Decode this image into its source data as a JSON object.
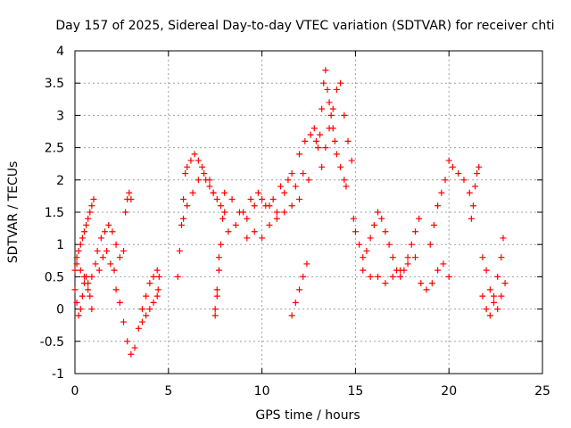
{
  "chart_data": {
    "type": "scatter",
    "title": "Day 157 of 2025, Sidereal Day-to-day VTEC variation (SDTVAR) for receiver chti",
    "xlabel": "GPS time / hours",
    "ylabel": "SDTVAR / TECUs",
    "xlim": [
      0,
      25
    ],
    "ylim": [
      -1,
      4
    ],
    "xticks": [
      "0",
      "5",
      "10",
      "15",
      "20",
      "25"
    ],
    "yticks": [
      "-1",
      "-0.5",
      "0",
      "0.5",
      "1",
      "1.5",
      "2",
      "2.5",
      "3",
      "3.5",
      "4"
    ],
    "grid": true,
    "marker": "+",
    "color": "#ff0000",
    "series": [
      {
        "x": [
          0.0,
          0.1,
          0.2,
          0.3,
          0.4,
          0.5,
          0.6,
          0.7,
          0.8,
          0.9,
          1.0,
          0.0,
          0.1,
          0.2,
          0.3,
          0.4,
          0.5,
          0.6,
          0.7,
          0.8,
          0.9,
          0.1,
          0.3,
          0.5,
          0.7,
          0.9,
          1.1,
          1.3,
          1.5,
          1.7,
          1.9,
          2.1,
          1.2,
          1.4,
          1.6,
          1.8,
          2.0,
          2.2,
          2.4,
          2.6,
          2.7,
          2.8,
          2.9,
          3.0,
          2.2,
          2.4,
          2.6,
          2.8,
          3.0,
          3.2,
          3.4,
          3.6,
          3.8,
          4.0,
          4.2,
          4.4,
          3.6,
          3.8,
          4.0,
          4.2,
          4.4,
          4.45,
          4.5,
          5.5,
          5.6,
          5.7,
          5.8,
          5.9,
          6.0,
          6.2,
          6.4,
          6.6,
          6.8,
          7.0,
          7.2,
          7.4,
          7.6,
          7.8,
          8.0,
          5.8,
          6.0,
          6.3,
          6.6,
          6.9,
          7.2,
          7.4,
          7.5,
          7.6,
          7.7,
          7.8,
          7.9,
          7.5,
          7.6,
          7.7,
          8.0,
          8.4,
          8.8,
          9.2,
          9.6,
          10.0,
          10.4,
          10.8,
          11.2,
          11.6,
          12.0,
          12.3,
          8.2,
          8.6,
          9.0,
          9.4,
          9.8,
          10.2,
          10.6,
          11.0,
          11.4,
          11.8,
          12.2,
          12.5,
          9.2,
          9.6,
          10.0,
          10.4,
          10.8,
          11.2,
          11.6,
          12.0,
          11.6,
          11.8,
          12.0,
          12.2,
          12.4,
          12.6,
          12.8,
          12.9,
          13.0,
          13.1,
          13.2,
          13.3,
          13.4,
          13.5,
          13.6,
          13.7,
          13.8,
          13.9,
          14.0,
          14.2,
          14.4,
          14.5,
          13.2,
          13.4,
          13.6,
          13.8,
          14.0,
          14.2,
          14.4,
          14.6,
          14.8,
          14.9,
          15.0,
          15.2,
          15.4,
          15.6,
          15.8,
          16.0,
          16.2,
          16.4,
          16.6,
          16.8,
          17.0,
          17.2,
          17.4,
          17.6,
          17.8,
          18.0,
          18.2,
          18.4,
          15.4,
          15.8,
          16.2,
          16.6,
          17.0,
          17.4,
          17.8,
          18.2,
          18.5,
          18.8,
          19.1,
          19.4,
          19.7,
          20.0,
          19.0,
          19.2,
          19.4,
          19.6,
          19.8,
          20.0,
          20.2,
          20.5,
          20.8,
          21.1,
          21.2,
          21.3,
          21.4,
          21.5,
          21.6,
          21.8,
          22.0,
          22.2,
          22.4,
          22.6,
          22.8,
          23.0,
          21.8,
          22.0,
          22.2,
          22.4,
          22.6,
          22.8,
          22.9
        ],
        "y": [
          0.6,
          0.7,
          0.9,
          1.0,
          1.1,
          1.2,
          1.3,
          1.4,
          1.5,
          1.6,
          1.7,
          0.3,
          0.1,
          -0.1,
          0.0,
          0.2,
          0.4,
          0.5,
          0.3,
          0.2,
          0.0,
          0.8,
          0.6,
          0.5,
          0.4,
          0.5,
          0.7,
          0.6,
          0.8,
          0.9,
          0.7,
          0.6,
          0.9,
          1.1,
          1.2,
          1.3,
          1.2,
          1.0,
          0.8,
          0.9,
          1.5,
          1.7,
          1.8,
          1.7,
          0.3,
          0.1,
          -0.2,
          -0.5,
          -0.7,
          -0.6,
          -0.3,
          0.0,
          0.2,
          0.4,
          0.5,
          0.6,
          -0.2,
          -0.1,
          0.0,
          0.1,
          0.2,
          0.3,
          0.5,
          0.5,
          0.9,
          1.3,
          1.7,
          2.1,
          2.2,
          2.3,
          2.4,
          2.3,
          2.2,
          2.0,
          1.9,
          1.8,
          1.7,
          1.6,
          1.5,
          1.4,
          1.6,
          1.8,
          2.0,
          2.1,
          2.0,
          1.8,
          0.0,
          0.2,
          0.6,
          1.0,
          1.4,
          -0.1,
          0.3,
          0.8,
          1.8,
          1.7,
          1.5,
          1.4,
          1.6,
          1.7,
          1.6,
          1.5,
          1.8,
          2.1,
          2.4,
          2.6,
          1.2,
          1.3,
          1.5,
          1.7,
          1.8,
          1.6,
          1.7,
          1.9,
          2.0,
          1.9,
          2.1,
          2.0,
          1.1,
          1.2,
          1.1,
          1.3,
          1.4,
          1.5,
          1.6,
          1.7,
          -0.1,
          0.1,
          0.3,
          0.5,
          0.7,
          2.7,
          2.8,
          2.6,
          2.5,
          2.7,
          3.1,
          3.5,
          3.7,
          3.4,
          3.2,
          3.0,
          2.8,
          2.6,
          2.4,
          2.2,
          2.0,
          1.9,
          2.2,
          2.5,
          2.8,
          3.1,
          3.4,
          3.5,
          3.0,
          2.6,
          2.3,
          1.4,
          1.2,
          1.0,
          0.8,
          0.9,
          1.1,
          1.3,
          1.5,
          1.4,
          1.2,
          1.0,
          0.8,
          0.6,
          0.5,
          0.6,
          0.8,
          1.0,
          1.2,
          1.4,
          0.6,
          0.5,
          0.5,
          0.4,
          0.5,
          0.6,
          0.7,
          0.8,
          0.4,
          0.3,
          0.4,
          0.6,
          0.7,
          0.5,
          1.0,
          1.3,
          1.6,
          1.8,
          2.0,
          2.3,
          2.2,
          2.1,
          2.0,
          1.8,
          1.4,
          1.6,
          1.9,
          2.1,
          2.2,
          0.8,
          0.6,
          0.3,
          0.1,
          0.0,
          0.2,
          0.4,
          0.2,
          0.0,
          -0.1,
          0.2,
          0.5,
          0.8,
          1.1
        ]
      }
    ]
  }
}
